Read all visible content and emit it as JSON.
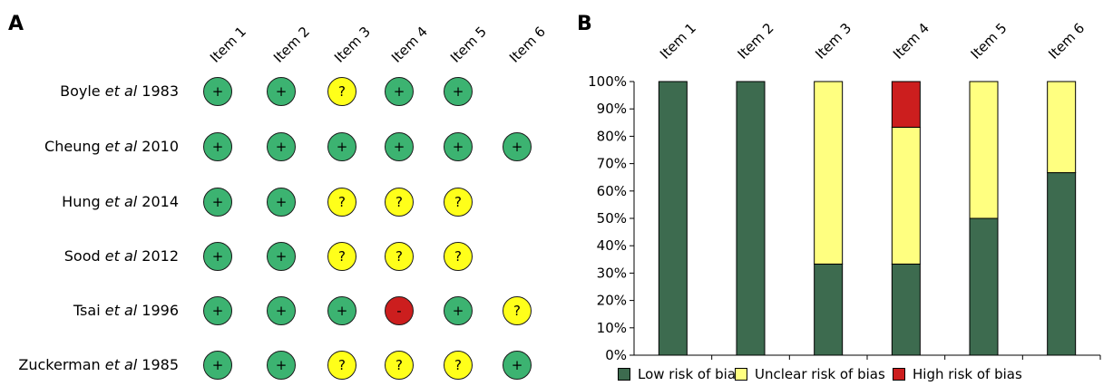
{
  "panel_a": {
    "letter": "A",
    "items": [
      "Item 1",
      "Item 2",
      "Item 3",
      "Item 4",
      "Item 5",
      "Item 6"
    ],
    "studies": [
      {
        "author": "Boyle",
        "etal": "et al",
        "year": "1983",
        "ratings": [
          "+",
          "+",
          "?",
          "+",
          "+",
          ""
        ]
      },
      {
        "author": "Cheung",
        "etal": "et al",
        "year": "2010",
        "ratings": [
          "+",
          "+",
          "+",
          "+",
          "+",
          "+"
        ]
      },
      {
        "author": "Hung",
        "etal": "et al",
        "year": "2014",
        "ratings": [
          "+",
          "+",
          "?",
          "?",
          "?",
          ""
        ]
      },
      {
        "author": "Sood",
        "etal": "et al",
        "year": "2012",
        "ratings": [
          "+",
          "+",
          "?",
          "?",
          "?",
          ""
        ]
      },
      {
        "author": "Tsai",
        "etal": "et al",
        "year": "1996",
        "ratings": [
          "+",
          "+",
          "+",
          "-",
          "+",
          "?"
        ]
      },
      {
        "author": "Zuckerman",
        "etal": "et al",
        "year": "1985",
        "ratings": [
          "+",
          "+",
          "?",
          "?",
          "?",
          "+"
        ]
      }
    ],
    "colors": {
      "+": "#3cb371",
      "?": "#ffff1a",
      "-": "#cc1e1e"
    }
  },
  "chart_data": {
    "type": "bar",
    "stacked": true,
    "panel_letter": "B",
    "categories": [
      "Item 1",
      "Item 2",
      "Item 3",
      "Item 4",
      "Item 5",
      "Item 6"
    ],
    "series": [
      {
        "name": "Low risk of bias",
        "color": "#3d6b4f",
        "values": [
          100,
          100,
          33.3,
          33.3,
          50,
          66.7
        ]
      },
      {
        "name": "Unclear risk of bias",
        "color": "#ffff80",
        "values": [
          0,
          0,
          66.7,
          50,
          50,
          33.3
        ]
      },
      {
        "name": "High risk of bias",
        "color": "#cc1e1e",
        "values": [
          0,
          0,
          0,
          16.7,
          0,
          0
        ]
      }
    ],
    "yticks": [
      "0%",
      "10%",
      "20%",
      "30%",
      "40%",
      "50%",
      "60%",
      "70%",
      "80%",
      "90%",
      "100%"
    ],
    "ylim": [
      0,
      100
    ],
    "legend_position": "bottom"
  }
}
